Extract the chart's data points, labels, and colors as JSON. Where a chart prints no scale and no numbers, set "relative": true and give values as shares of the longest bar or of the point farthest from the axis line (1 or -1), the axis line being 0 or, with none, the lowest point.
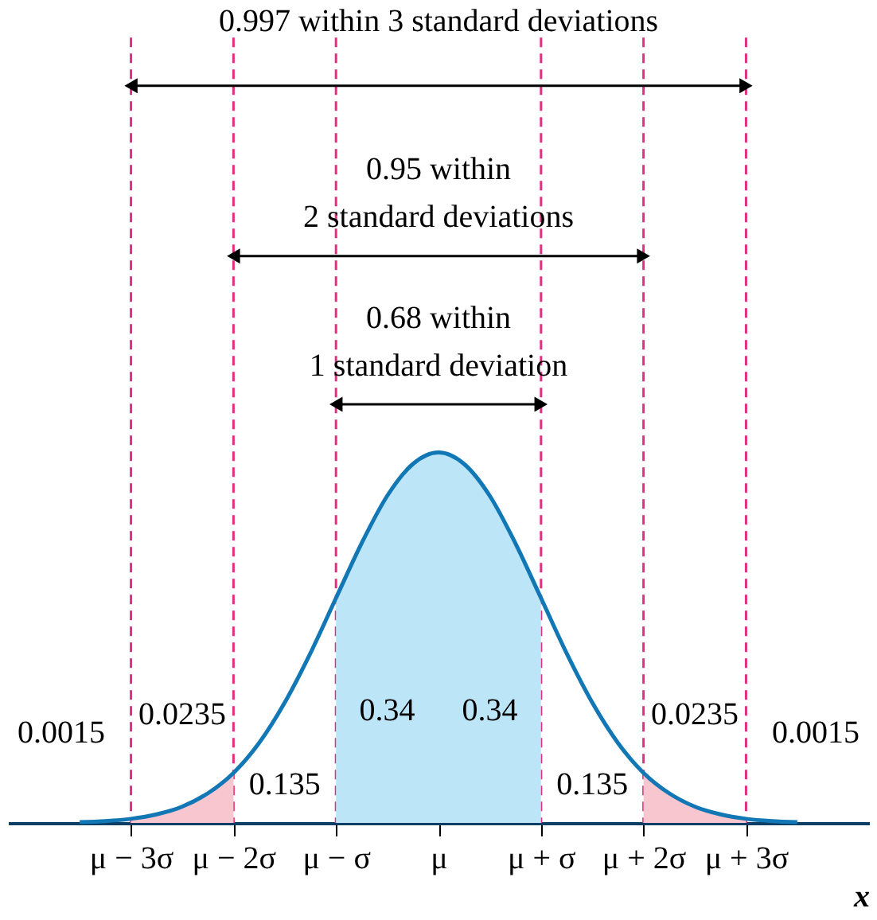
{
  "chart_data": {
    "type": "line",
    "relative": true,
    "xlabel": "x",
    "grid": false,
    "marker": "none",
    "xlim": [
      -4.2,
      4.2
    ],
    "xticks": [
      {
        "value": -3,
        "label": "μ − 3σ"
      },
      {
        "value": -2,
        "label": "μ − 2σ"
      },
      {
        "value": -1,
        "label": "μ − σ"
      },
      {
        "value": 0,
        "label": "μ"
      },
      {
        "value": 1,
        "label": "μ + σ"
      },
      {
        "value": 2,
        "label": "μ + 2σ"
      },
      {
        "value": 3,
        "label": "μ + 3σ"
      }
    ],
    "series": [
      {
        "type": "area",
        "color": "#bde5f8",
        "x": [
          -1,
          -0.75,
          -0.5,
          -0.25,
          0,
          0.25,
          0.5,
          0.75,
          1
        ],
        "values": [
          0.607,
          0.755,
          0.883,
          0.969,
          1,
          0.969,
          0.883,
          0.755,
          0.607
        ]
      },
      {
        "type": "area",
        "color": "#f8c6cf",
        "x": [
          -3,
          -2.75,
          -2.5,
          -2.25,
          -2
        ],
        "values": [
          0.011,
          0.023,
          0.044,
          0.08,
          0.135
        ]
      },
      {
        "type": "area",
        "color": "#f8c6cf",
        "x": [
          2,
          2.25,
          2.5,
          2.75,
          3
        ],
        "values": [
          0.135,
          0.08,
          0.044,
          0.023,
          0.011
        ]
      },
      {
        "color": "#1177b5",
        "x": [
          -3.5,
          -3.25,
          -3,
          -2.75,
          -2.5,
          -2.25,
          -2,
          -1.75,
          -1.5,
          -1.25,
          -1,
          -0.75,
          -0.5,
          -0.25,
          0,
          0.25,
          0.5,
          0.75,
          1,
          1.25,
          1.5,
          1.75,
          2,
          2.25,
          2.5,
          2.75,
          3,
          3.25,
          3.5
        ],
        "values": [
          0.002,
          0.005,
          0.011,
          0.023,
          0.044,
          0.08,
          0.135,
          0.216,
          0.325,
          0.458,
          0.607,
          0.755,
          0.883,
          0.969,
          1,
          0.969,
          0.883,
          0.755,
          0.607,
          0.458,
          0.325,
          0.216,
          0.135,
          0.08,
          0.044,
          0.023,
          0.011,
          0.005,
          0.002
        ]
      }
    ],
    "ref_lines": [
      {
        "axis": "x",
        "value": -3,
        "color": "#e0307f",
        "line_style": "dashed"
      },
      {
        "axis": "x",
        "value": -2,
        "color": "#e0307f",
        "line_style": "dashed"
      },
      {
        "axis": "x",
        "value": -1,
        "color": "#e0307f",
        "line_style": "dashed"
      },
      {
        "axis": "x",
        "value": 1,
        "color": "#e0307f",
        "line_style": "dashed"
      },
      {
        "axis": "x",
        "value": 2,
        "color": "#e0307f",
        "line_style": "dashed"
      },
      {
        "axis": "x",
        "value": 3,
        "color": "#e0307f",
        "line_style": "dashed"
      }
    ],
    "annotations": [
      "0.997 within 3 standard deviations",
      "0.95 within\n2 standard deviations",
      "0.68 within\n1 standard deviation",
      "0.34",
      "0.34",
      "0.135",
      "0.135",
      "0.0235",
      "0.0235",
      "0.0015",
      "0.0015"
    ]
  }
}
